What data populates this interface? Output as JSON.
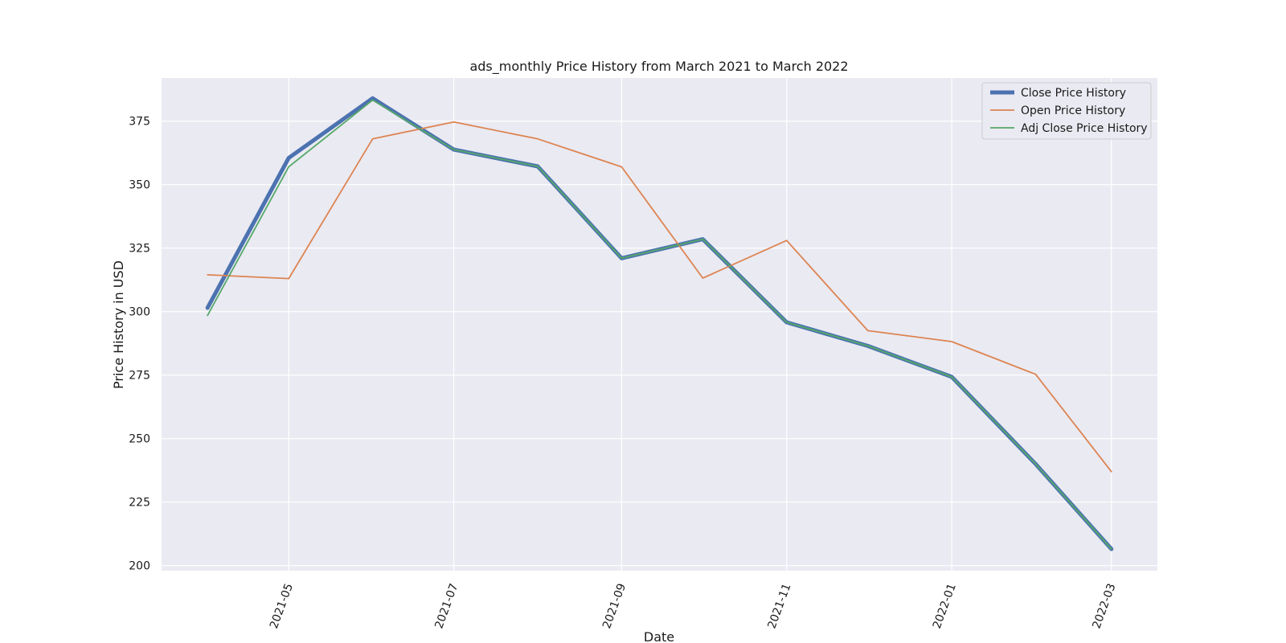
{
  "chart_data": {
    "type": "line",
    "title": "ads_monthly Price History from March 2021 to March 2022",
    "xlabel": "Date",
    "ylabel": "Price History in USD",
    "x": [
      "2021-04-01",
      "2021-05-01",
      "2021-06-01",
      "2021-07-01",
      "2021-08-01",
      "2021-09-01",
      "2021-10-01",
      "2021-11-01",
      "2021-12-01",
      "2022-01-01",
      "2022-02-01",
      "2022-03-01"
    ],
    "x_ticks": [
      "2021-05",
      "2021-07",
      "2021-09",
      "2021-11",
      "2022-01",
      "2022-03"
    ],
    "y_ticks": [
      200,
      225,
      250,
      275,
      300,
      325,
      350,
      375
    ],
    "xlim": [
      "2021-03-15",
      "2022-03-18"
    ],
    "ylim": [
      198,
      392
    ],
    "grid": true,
    "legend_position": "top-right",
    "plot_background": "#eaeaf2",
    "series": [
      {
        "name": "Close Price History",
        "color": "#4c72b0",
        "values": [
          301.5,
          360.5,
          384.0,
          363.8,
          357.2,
          321.0,
          328.5,
          295.8,
          286.5,
          274.3,
          240.0,
          206.5
        ]
      },
      {
        "name": "Open Price History",
        "color": "#dd8452",
        "values": [
          314.5,
          313.0,
          368.0,
          374.7,
          368.0,
          357.0,
          313.2,
          328.0,
          292.5,
          288.2,
          275.3,
          237.0
        ]
      },
      {
        "name": "Adj Close Price History",
        "color": "#55a868",
        "values": [
          298.5,
          357.0,
          383.3,
          363.8,
          357.2,
          321.0,
          328.5,
          295.8,
          286.5,
          274.3,
          240.0,
          206.5
        ]
      }
    ]
  }
}
